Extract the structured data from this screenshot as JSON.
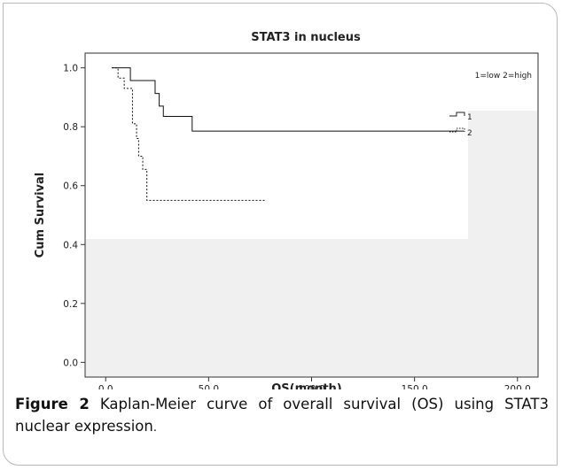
{
  "chart_data": {
    "type": "line",
    "title": "STAT3 in nucleus",
    "xlabel": "OS(month)",
    "ylabel": "Cum Survival",
    "xlim": [
      -10,
      210
    ],
    "ylim": [
      -0.05,
      1.05
    ],
    "x_ticks": [
      0,
      50,
      100,
      150,
      200
    ],
    "x_tick_labels": [
      "0.0",
      "50.0",
      "100.0",
      "150.0",
      "200.0"
    ],
    "y_ticks": [
      0.0,
      0.2,
      0.4,
      0.6,
      0.8,
      1.0
    ],
    "y_tick_labels": [
      "0.0",
      "0.2",
      "0.4",
      "0.6",
      "0.8",
      "1.0"
    ],
    "grid": false,
    "legend_title": "1=low 2=high",
    "legend_position": "top-right",
    "series": [
      {
        "name": "1",
        "style": "solid",
        "x": [
          3,
          8,
          12,
          24,
          26,
          28,
          42,
          174
        ],
        "y": [
          1.0,
          1.0,
          0.957,
          0.913,
          0.87,
          0.835,
          0.785,
          0.785
        ]
      },
      {
        "name": "2",
        "style": "dotted",
        "x": [
          3,
          6,
          9,
          13,
          15,
          16,
          18,
          20,
          78
        ],
        "y": [
          1.0,
          0.965,
          0.93,
          0.81,
          0.76,
          0.7,
          0.655,
          0.55,
          0.55
        ]
      }
    ]
  },
  "caption": {
    "label": "Figure 2",
    "text": " Kaplan-Meier curve of overall survival (OS) using STAT3 nuclear expression",
    "end": "."
  }
}
